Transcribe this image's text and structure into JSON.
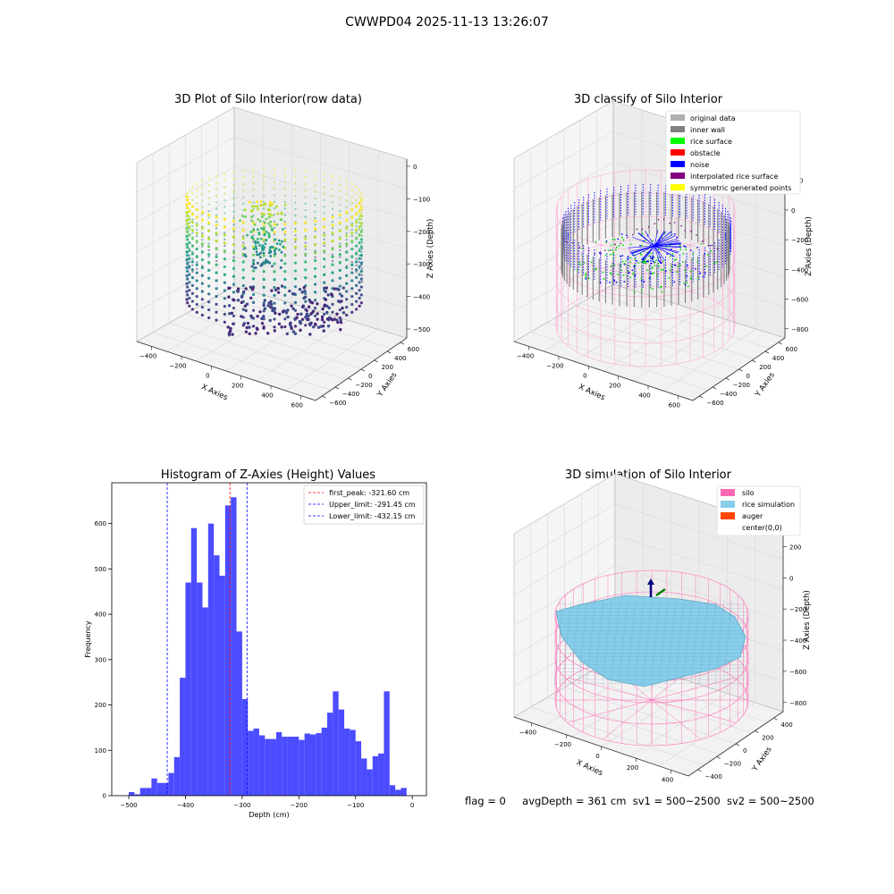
{
  "figure": {
    "suptitle": "CWWPD04 2025-11-13 13:26:07",
    "footer": {
      "flag": "flag = 0",
      "avg_depth": "avgDepth = 361 cm",
      "sv1": "sv1 = 500~2500",
      "sv2": "sv2 = 500~2500"
    }
  },
  "chart_data": [
    {
      "type": "scatter",
      "projection": "3d",
      "title": "3D Plot of Silo Interior(row data)",
      "xlabel": "X Axies",
      "ylabel": "Y Axies",
      "zlabel": "Z Axies (Depth)",
      "x_ticks": [
        "−400",
        "−200",
        "0",
        "200",
        "400",
        "600"
      ],
      "y_ticks": [
        "−600",
        "−400",
        "−200",
        "0",
        "200",
        "400",
        "600"
      ],
      "z_ticks": [
        "0",
        "−100",
        "−200",
        "−300",
        "−400",
        "−500"
      ],
      "colormap": "viridis"
    },
    {
      "type": "scatter",
      "projection": "3d",
      "title": "3D classify of Silo Interior",
      "xlabel": "X Axies",
      "ylabel": "Y Axies",
      "zlabel": "Z Axies (Depth)",
      "x_ticks": [
        "−400",
        "−200",
        "0",
        "200",
        "400",
        "600"
      ],
      "y_ticks": [
        "−600",
        "−400",
        "−200",
        "0",
        "200",
        "400",
        "600"
      ],
      "z_ticks": [
        "200",
        "0",
        "−200",
        "−400",
        "−600",
        "−800"
      ],
      "legend_placement": "upper-right",
      "legend": [
        {
          "label": "original data",
          "color": "#b0b0b0"
        },
        {
          "label": "inner wall",
          "color": "#808080"
        },
        {
          "label": "rice surface",
          "color": "#00ff00"
        },
        {
          "label": "obstacle",
          "color": "#ff0000"
        },
        {
          "label": "noise",
          "color": "#0000ff"
        },
        {
          "label": "interpolated rice surface",
          "color": "#800080"
        },
        {
          "label": "symmetric generated points",
          "color": "#ffff00"
        }
      ]
    },
    {
      "type": "bar",
      "title": "Histogram of Z-Axies (Height) Values",
      "xlabel": "Depth (cm)",
      "ylabel": "Frequency",
      "xlim": [
        -530,
        25
      ],
      "ylim": [
        0,
        690
      ],
      "x_ticks": [
        -500,
        -400,
        -300,
        -200,
        -100,
        0
      ],
      "y_ticks": [
        0,
        100,
        200,
        300,
        400,
        500,
        600
      ],
      "bar_color": "#4b4bff",
      "bin_width": 10,
      "bin_starts": [
        -500,
        -490,
        -480,
        -470,
        -460,
        -450,
        -440,
        -430,
        -420,
        -410,
        -400,
        -390,
        -380,
        -370,
        -360,
        -350,
        -340,
        -330,
        -320,
        -310,
        -300,
        -290,
        -280,
        -270,
        -260,
        -250,
        -240,
        -230,
        -220,
        -210,
        -200,
        -190,
        -180,
        -170,
        -160,
        -150,
        -140,
        -130,
        -120,
        -110,
        -100,
        -90,
        -80,
        -70,
        -60,
        -50,
        -40,
        -30,
        -20,
        -10
      ],
      "values": [
        8,
        3,
        17,
        17,
        38,
        28,
        28,
        50,
        85,
        260,
        470,
        590,
        470,
        415,
        600,
        530,
        485,
        640,
        658,
        362,
        213,
        143,
        148,
        133,
        125,
        125,
        140,
        130,
        130,
        130,
        123,
        137,
        135,
        138,
        150,
        183,
        230,
        190,
        148,
        145,
        120,
        82,
        58,
        87,
        93,
        230,
        23,
        13,
        17,
        0
      ],
      "lines": [
        {
          "label": "first_peak: -321.60 cm",
          "x": -321.6,
          "color": "#ff0000"
        },
        {
          "label": "Upper_limit: -291.45 cm",
          "x": -291.45,
          "color": "#0000ff"
        },
        {
          "label": "Lower_limit: -432.15 cm",
          "x": -432.15,
          "color": "#0000ff"
        }
      ],
      "legend_placement": "upper-right"
    },
    {
      "type": "scatter",
      "projection": "3d",
      "title": "3D simulation of Silo Interior",
      "xlabel": "X Axies",
      "ylabel": "Y Axies",
      "zlabel": "Z Axies (Depth)",
      "x_ticks": [
        "−400",
        "−200",
        "0",
        "200",
        "400"
      ],
      "y_ticks": [
        "−400",
        "−200",
        "0",
        "200",
        "400"
      ],
      "z_ticks": [
        "200",
        "0",
        "−200",
        "−400",
        "−600",
        "−800"
      ],
      "legend_placement": "upper-right",
      "legend": [
        {
          "label": "silo",
          "color": "#ff69b4"
        },
        {
          "label": "rice simulation",
          "color": "#87ceeb"
        },
        {
          "label": "auger",
          "color": "#ff4500"
        },
        {
          "label": "center(0,0)",
          "color": "#ffffff"
        }
      ]
    }
  ]
}
